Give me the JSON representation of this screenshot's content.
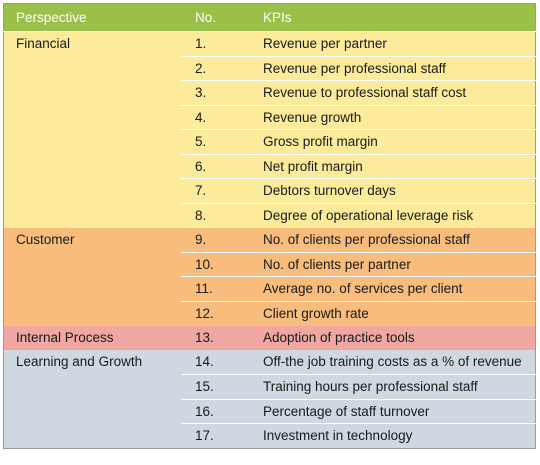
{
  "header": {
    "perspective": "Perspective",
    "no": "No.",
    "kpis": "KPIs"
  },
  "colors": {
    "header": "#9bc04a",
    "Financial": "#fbeb9a",
    "Customer": "#f8bd7d",
    "Internal Process": "#f0a7a2",
    "Learning and Growth": "#cfd7e1"
  },
  "groups": [
    {
      "perspective": "Financial",
      "items": [
        {
          "no": "1.",
          "kpi": "Revenue per partner"
        },
        {
          "no": "2.",
          "kpi": "Revenue per professional staff"
        },
        {
          "no": "3.",
          "kpi": "Revenue to professional staff cost"
        },
        {
          "no": "4.",
          "kpi": "Revenue growth"
        },
        {
          "no": "5.",
          "kpi": "Gross profit margin"
        },
        {
          "no": "6.",
          "kpi": "Net profit margin"
        },
        {
          "no": "7.",
          "kpi": "Debtors turnover days"
        },
        {
          "no": "8.",
          "kpi": "Degree of operational leverage risk"
        }
      ]
    },
    {
      "perspective": "Customer",
      "items": [
        {
          "no": "9.",
          "kpi": "No. of clients per professional staff"
        },
        {
          "no": "10.",
          "kpi": "No. of clients per partner"
        },
        {
          "no": "11.",
          "kpi": "Average no. of services per client"
        },
        {
          "no": "12.",
          "kpi": "Client growth rate"
        }
      ]
    },
    {
      "perspective": "Internal Process",
      "items": [
        {
          "no": "13.",
          "kpi": "Adoption of practice tools"
        }
      ]
    },
    {
      "perspective": "Learning and Growth",
      "items": [
        {
          "no": "14.",
          "kpi": "Off-the job training costs as a % of revenue"
        },
        {
          "no": "15.",
          "kpi": "Training hours per professional staff"
        },
        {
          "no": "16.",
          "kpi": "Percentage of staff turnover"
        },
        {
          "no": "17.",
          "kpi": "Investment in technology"
        }
      ]
    }
  ]
}
